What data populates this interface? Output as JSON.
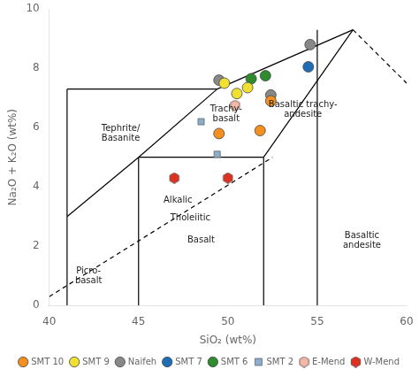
{
  "chart_data": {
    "type": "scatter",
    "xlabel": "SiO₂ (wt%)",
    "ylabel": "Na₂O + K₂O (wt%)",
    "xlim": [
      40,
      60
    ],
    "ylim": [
      0,
      10
    ],
    "xticks": [
      40,
      45,
      50,
      55,
      60
    ],
    "yticks": [
      0,
      2,
      4,
      6,
      8,
      10
    ],
    "grid": false,
    "legend": "lower right",
    "series": [
      {
        "name": "SMT 10",
        "color": "#f5901e",
        "marker": "circle",
        "x": [
          49.5,
          51.8,
          52.4
        ],
        "y": [
          5.8,
          5.9,
          6.9
        ]
      },
      {
        "name": "SMT 9",
        "color": "#f0e030",
        "marker": "circle",
        "x": [
          49.8,
          50.5,
          51.1
        ],
        "y": [
          7.5,
          7.15,
          7.35
        ]
      },
      {
        "name": "Naifeh",
        "color": "#888888",
        "marker": "circle",
        "x": [
          49.5,
          52.4,
          54.6
        ],
        "y": [
          7.6,
          7.1,
          8.8
        ]
      },
      {
        "name": "SMT 7",
        "color": "#1e6eb5",
        "marker": "circle",
        "x": [
          54.5
        ],
        "y": [
          8.05
        ]
      },
      {
        "name": "SMT 6",
        "color": "#2e8b2e",
        "marker": "circle",
        "x": [
          51.3,
          52.1
        ],
        "y": [
          7.65,
          7.75
        ]
      },
      {
        "name": "SMT 2",
        "color": "#8aaecc",
        "marker": "square",
        "x": [
          48.5,
          49.4
        ],
        "y": [
          6.2,
          5.1
        ]
      },
      {
        "name": "E-Mend",
        "color": "#f5b8a8",
        "marker": "hexagon",
        "x": [
          50.4
        ],
        "y": [
          6.75
        ]
      },
      {
        "name": "W-Mend",
        "color": "#e03020",
        "marker": "hexagon",
        "x": [
          47.0,
          50.0
        ],
        "y": [
          4.3,
          4.3
        ]
      }
    ],
    "lines": [
      {
        "x": [
          41,
          41
        ],
        "y": [
          0,
          3
        ],
        "line_style": "solid",
        "color": "#000000"
      },
      {
        "x": [
          41,
          45
        ],
        "y": [
          3,
          5
        ],
        "line_style": "solid",
        "color": "#000000"
      },
      {
        "x": [
          41,
          41
        ],
        "y": [
          3,
          7.3
        ],
        "line_style": "solid",
        "color": "#000000"
      },
      {
        "x": [
          41,
          49.4
        ],
        "y": [
          7.3,
          7.3
        ],
        "line_style": "solid",
        "color": "#000000"
      },
      {
        "x": [
          45,
          45
        ],
        "y": [
          0,
          5
        ],
        "line_style": "solid",
        "color": "#000000"
      },
      {
        "x": [
          45,
          52
        ],
        "y": [
          5,
          5
        ],
        "line_style": "solid",
        "color": "#000000"
      },
      {
        "x": [
          52,
          52
        ],
        "y": [
          0,
          5
        ],
        "line_style": "solid",
        "color": "#000000"
      },
      {
        "x": [
          55,
          55
        ],
        "y": [
          0,
          9.3
        ],
        "line_style": "solid",
        "color": "#000000"
      },
      {
        "x": [
          45,
          49.4
        ],
        "y": [
          5,
          7.3
        ],
        "line_style": "solid",
        "color": "#000000"
      },
      {
        "x": [
          52,
          57
        ],
        "y": [
          5,
          9.3
        ],
        "line_style": "solid",
        "color": "#000000"
      },
      {
        "x": [
          49.4,
          57
        ],
        "y": [
          7.3,
          9.3
        ],
        "line_style": "solid",
        "color": "#000000"
      },
      {
        "x": [
          57,
          60
        ],
        "y": [
          9.3,
          7.5
        ],
        "line_style": "dashed",
        "color": "#000000"
      },
      {
        "x": [
          40,
          52.5
        ],
        "y": [
          0.3,
          5.0
        ],
        "line_style": "dashed",
        "color": "#000000"
      }
    ],
    "annotations": [
      {
        "text": "Picro-\nbasalt",
        "x": 42.2,
        "y": 1.0
      },
      {
        "text": "Tephrite/\nBasanite",
        "x": 44.0,
        "y": 5.8
      },
      {
        "text": "Basalt",
        "x": 48.5,
        "y": 2.2
      },
      {
        "text": "Basaltic\nandesite",
        "x": 57.5,
        "y": 2.2
      },
      {
        "text": "Trachy-\nbasalt",
        "x": 49.9,
        "y": 6.45
      },
      {
        "text": "Basaltic trachy-\nandesite",
        "x": 54.2,
        "y": 6.6
      },
      {
        "text": "Alkalic",
        "x": 47.2,
        "y": 3.55
      },
      {
        "text": "Tholeiitic",
        "x": 47.9,
        "y": 2.95
      }
    ]
  }
}
